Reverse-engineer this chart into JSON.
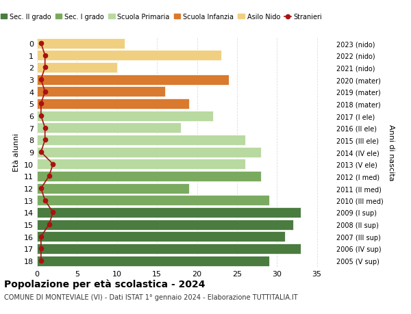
{
  "ages": [
    18,
    17,
    16,
    15,
    14,
    13,
    12,
    11,
    10,
    9,
    8,
    7,
    6,
    5,
    4,
    3,
    2,
    1,
    0
  ],
  "right_labels": [
    "2005 (V sup)",
    "2006 (IV sup)",
    "2007 (III sup)",
    "2008 (II sup)",
    "2009 (I sup)",
    "2010 (III med)",
    "2011 (II med)",
    "2012 (I med)",
    "2013 (V ele)",
    "2014 (IV ele)",
    "2015 (III ele)",
    "2016 (II ele)",
    "2017 (I ele)",
    "2018 (mater)",
    "2019 (mater)",
    "2020 (mater)",
    "2021 (nido)",
    "2022 (nido)",
    "2023 (nido)"
  ],
  "bar_values": [
    29,
    33,
    31,
    32,
    33,
    29,
    19,
    28,
    26,
    28,
    26,
    18,
    22,
    19,
    16,
    24,
    10,
    23,
    11
  ],
  "bar_colors": [
    "#4a7c3f",
    "#4a7c3f",
    "#4a7c3f",
    "#4a7c3f",
    "#4a7c3f",
    "#7aaa5f",
    "#7aaa5f",
    "#7aaa5f",
    "#b8d9a0",
    "#b8d9a0",
    "#b8d9a0",
    "#b8d9a0",
    "#b8d9a0",
    "#d97a2e",
    "#d97a2e",
    "#d97a2e",
    "#f0d080",
    "#f0d080",
    "#f0d080"
  ],
  "stranieri_x": [
    0.5,
    0.5,
    0.5,
    1.5,
    2.0,
    1.0,
    0.5,
    1.5,
    2.0,
    0.5,
    1.0,
    1.0,
    0.5,
    0.5,
    1.0,
    0.5,
    1.0,
    1.0,
    0.5
  ],
  "stranieri_color": "#aa1111",
  "legend_items": [
    {
      "label": "Sec. II grado",
      "color": "#4a7c3f"
    },
    {
      "label": "Sec. I grado",
      "color": "#7aaa5f"
    },
    {
      "label": "Scuola Primaria",
      "color": "#b8d9a0"
    },
    {
      "label": "Scuola Infanzia",
      "color": "#d97a2e"
    },
    {
      "label": "Asilo Nido",
      "color": "#f0d080"
    }
  ],
  "ylabel": "Età alunni",
  "right_ylabel": "Anni di nascita",
  "title": "Popolazione per età scolastica - 2024",
  "subtitle": "COMUNE DI MONTEVIALE (VI) - Dati ISTAT 1° gennaio 2024 - Elaborazione TUTTITALIA.IT",
  "xlim": [
    0,
    37
  ],
  "xticks": [
    0,
    5,
    10,
    15,
    20,
    25,
    30,
    35
  ],
  "background_color": "#ffffff",
  "grid_color": "#dddddd"
}
